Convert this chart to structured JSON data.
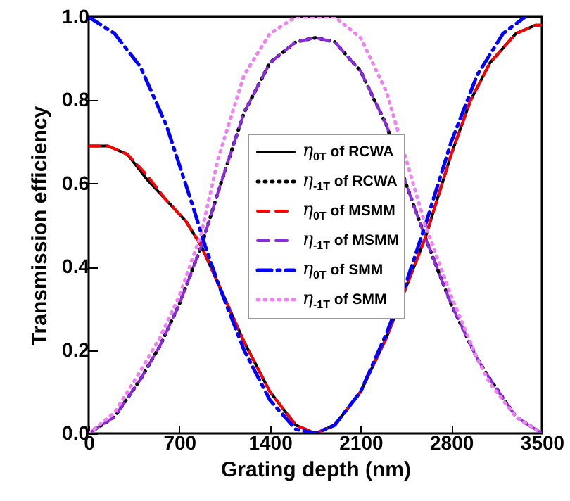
{
  "chart_data": {
    "type": "line",
    "xlabel": "Grating depth (nm)",
    "ylabel": "Transmission efficiency",
    "xlim": [
      0,
      3500
    ],
    "ylim": [
      0,
      1
    ],
    "xticks": [
      0,
      700,
      1400,
      2100,
      2800,
      3500
    ],
    "yticks": [
      {
        "value": 0,
        "label": "0.0"
      },
      {
        "value": 0.2,
        "label": "0.2"
      },
      {
        "value": 0.4,
        "label": "0.4"
      },
      {
        "value": 0.6,
        "label": "0.6"
      },
      {
        "value": 0.8,
        "label": "0.8"
      },
      {
        "value": 1,
        "label": "1.0"
      }
    ],
    "legend": "center",
    "grid": false,
    "marker": "none",
    "series": [
      {
        "name": "η$_{0T}$ of RCWA",
        "color": "#000000",
        "line_style": "solid",
        "x": [
          0,
          150,
          300,
          450,
          600,
          750,
          870,
          1000,
          1200,
          1400,
          1600,
          1750,
          1900,
          2100,
          2300,
          2450,
          2600,
          2700,
          2800,
          2950,
          3100,
          3300,
          3450,
          3500
        ],
        "values": [
          0.69,
          0.69,
          0.67,
          0.61,
          0.56,
          0.51,
          0.45,
          0.36,
          0.22,
          0.1,
          0.02,
          0,
          0.02,
          0.1,
          0.23,
          0.35,
          0.47,
          0.57,
          0.67,
          0.8,
          0.89,
          0.96,
          0.98,
          0.98
        ]
      },
      {
        "name": "η$_{-1T}$ of RCWA",
        "color": "#000000",
        "line_style": "dotted",
        "x": [
          0,
          200,
          400,
          550,
          700,
          870,
          1000,
          1200,
          1400,
          1600,
          1750,
          1900,
          2100,
          2300,
          2450,
          2600,
          2800,
          3000,
          3100,
          3300,
          3500
        ],
        "values": [
          0,
          0.04,
          0.13,
          0.21,
          0.31,
          0.45,
          0.58,
          0.77,
          0.89,
          0.94,
          0.95,
          0.94,
          0.87,
          0.74,
          0.6,
          0.47,
          0.31,
          0.18,
          0.13,
          0.04,
          0
        ]
      },
      {
        "name": "η$_{0T}$ of MSMM",
        "color": "#ff0000",
        "line_style": "dashed",
        "x": [
          0,
          150,
          300,
          450,
          600,
          750,
          870,
          1000,
          1200,
          1400,
          1600,
          1750,
          1900,
          2100,
          2300,
          2450,
          2600,
          2700,
          2800,
          2950,
          3100,
          3300,
          3450,
          3500
        ],
        "values": [
          0.69,
          0.69,
          0.67,
          0.62,
          0.56,
          0.51,
          0.45,
          0.36,
          0.22,
          0.1,
          0.02,
          0,
          0.02,
          0.1,
          0.23,
          0.35,
          0.47,
          0.57,
          0.67,
          0.8,
          0.89,
          0.96,
          0.98,
          0.98
        ]
      },
      {
        "name": "η$_{-1T}$ of MSMM",
        "color": "#8a2be2",
        "line_style": "dashed",
        "x": [
          0,
          200,
          400,
          550,
          700,
          870,
          1000,
          1200,
          1400,
          1600,
          1750,
          1900,
          2100,
          2300,
          2450,
          2600,
          2800,
          3000,
          3100,
          3300,
          3500
        ],
        "values": [
          0,
          0.04,
          0.13,
          0.21,
          0.31,
          0.45,
          0.58,
          0.77,
          0.89,
          0.94,
          0.95,
          0.94,
          0.87,
          0.74,
          0.6,
          0.47,
          0.31,
          0.18,
          0.13,
          0.04,
          0
        ]
      },
      {
        "name": "η$_{0T}$ of SMM",
        "color": "#0000ff",
        "line_style": "dashdot",
        "x": [
          0,
          200,
          400,
          600,
          800,
          900,
          1000,
          1200,
          1400,
          1600,
          1750,
          1900,
          2100,
          2300,
          2450,
          2600,
          2800,
          3000,
          3200,
          3370
        ],
        "values": [
          1,
          0.96,
          0.88,
          0.74,
          0.55,
          0.45,
          0.36,
          0.2,
          0.08,
          0.01,
          0,
          0.02,
          0.1,
          0.24,
          0.36,
          0.5,
          0.7,
          0.86,
          0.96,
          1
        ]
      },
      {
        "name": "η$_{-1T}$ of SMM",
        "color": "#ee82ee",
        "line_style": "dotted",
        "x": [
          0,
          200,
          400,
          550,
          700,
          870,
          1000,
          1200,
          1400,
          1600,
          1750,
          1900,
          2100,
          2300,
          2450,
          2600,
          2800,
          3000,
          3100,
          3300,
          3500
        ],
        "values": [
          0,
          0.05,
          0.15,
          0.23,
          0.33,
          0.48,
          0.66,
          0.86,
          0.96,
          1,
          1,
          1,
          0.95,
          0.82,
          0.66,
          0.5,
          0.33,
          0.18,
          0.12,
          0.04,
          0
        ]
      }
    ]
  }
}
